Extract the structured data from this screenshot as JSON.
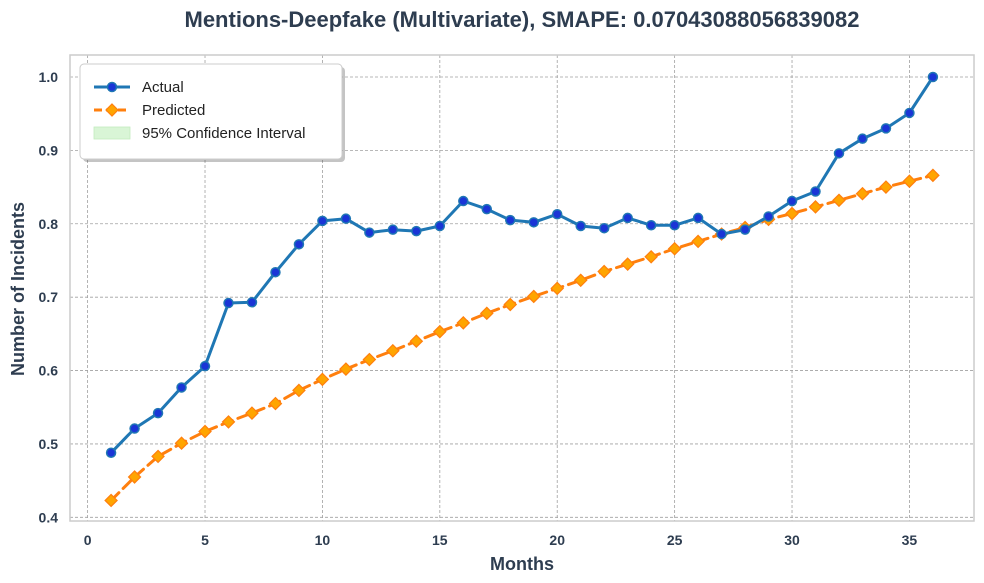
{
  "chart_data": {
    "type": "line",
    "title": "Mentions-Deepfake (Multivariate), SMAPE: 0.07043088056839082",
    "xlabel": "Months",
    "ylabel": "Number of Incidents",
    "xlim": [
      -0.75,
      37.75
    ],
    "ylim": [
      0.395,
      1.03
    ],
    "xticks": [
      0,
      5,
      10,
      15,
      20,
      25,
      30,
      35
    ],
    "yticks": [
      0.4,
      0.5,
      0.6,
      0.7,
      0.8,
      0.9,
      1.0
    ],
    "grid": true,
    "legend_position": "top-left",
    "x": [
      1,
      2,
      3,
      4,
      5,
      6,
      7,
      8,
      9,
      10,
      11,
      12,
      13,
      14,
      15,
      16,
      17,
      18,
      19,
      20,
      21,
      22,
      23,
      24,
      25,
      26,
      27,
      28,
      29,
      30,
      31,
      32,
      33,
      34,
      35,
      36
    ],
    "series": [
      {
        "name": "Actual",
        "color": "#1f77b4",
        "marker_color": "#1a35d6",
        "marker": "circle",
        "style": "solid",
        "values": [
          0.488,
          0.521,
          0.542,
          0.577,
          0.606,
          0.692,
          0.693,
          0.734,
          0.772,
          0.804,
          0.807,
          0.788,
          0.792,
          0.79,
          0.797,
          0.831,
          0.82,
          0.805,
          0.802,
          0.813,
          0.797,
          0.794,
          0.808,
          0.798,
          0.798,
          0.808,
          0.786,
          0.792,
          0.81,
          0.831,
          0.844,
          0.896,
          0.916,
          0.93,
          0.951,
          1.0
        ]
      },
      {
        "name": "Predicted",
        "color": "#ff7f0e",
        "marker_color": "#ffa500",
        "marker": "diamond",
        "style": "dashed",
        "values": [
          0.423,
          0.455,
          0.483,
          0.501,
          0.517,
          0.53,
          0.542,
          0.555,
          0.573,
          0.588,
          0.602,
          0.615,
          0.627,
          0.64,
          0.653,
          0.665,
          0.678,
          0.69,
          0.701,
          0.712,
          0.723,
          0.735,
          0.745,
          0.755,
          0.766,
          0.776,
          0.786,
          0.795,
          0.806,
          0.814,
          0.823,
          0.832,
          0.841,
          0.85,
          0.858,
          0.866
        ]
      }
    ],
    "legend": [
      {
        "label": "Actual",
        "kind": "line-circle",
        "color": "#1f77b4"
      },
      {
        "label": "Predicted",
        "kind": "dashed-diamond",
        "color": "#ff7f0e"
      },
      {
        "label": "95% Confidence Interval",
        "kind": "band",
        "color": "#d9f5d6"
      }
    ]
  }
}
